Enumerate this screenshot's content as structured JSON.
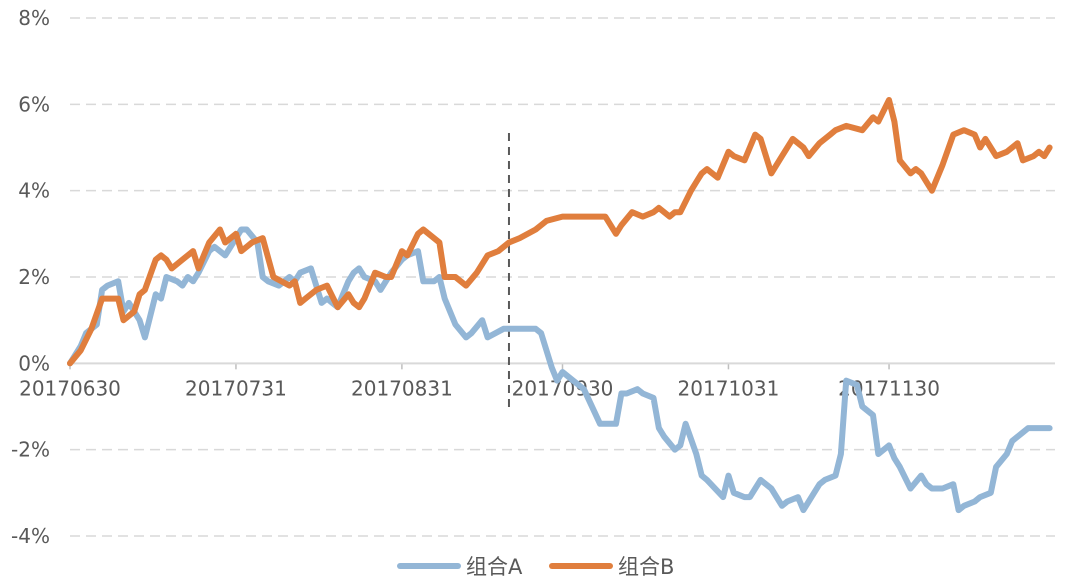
{
  "chart_data": {
    "type": "line",
    "title": "",
    "xlabel": "",
    "ylabel": "",
    "ylim": [
      -0.04,
      0.08
    ],
    "y_ticks": [
      -0.04,
      -0.02,
      0,
      0.02,
      0.04,
      0.06,
      0.08
    ],
    "y_tick_labels": [
      "-4%",
      "-2%",
      "0%",
      "2%",
      "4%",
      "6%",
      "8%"
    ],
    "x_tick_labels": [
      "20170630",
      "20170731",
      "20170831",
      "20170930",
      "20171031",
      "20171130"
    ],
    "x_ticks": [
      "2017-06-30",
      "2017-07-31",
      "2017-08-31",
      "2017-09-30",
      "2017-10-31",
      "2017-11-30"
    ],
    "x_range": [
      "2017-06-30",
      "2017-12-31"
    ],
    "grid": true,
    "grid_style": "dashed horizontal",
    "split_marker": {
      "x": "2017-09-20",
      "style": "dashed vertical"
    },
    "legend_position": "bottom-center",
    "series": [
      {
        "name": "组合A",
        "color": "#93b6d6",
        "x": [
          "2017-06-30",
          "2017-07-02",
          "2017-07-03",
          "2017-07-05",
          "2017-07-06",
          "2017-07-07",
          "2017-07-09",
          "2017-07-10",
          "2017-07-11",
          "2017-07-13",
          "2017-07-14",
          "2017-07-16",
          "2017-07-17",
          "2017-07-18",
          "2017-07-20",
          "2017-07-21",
          "2017-07-22",
          "2017-07-23",
          "2017-07-24",
          "2017-07-26",
          "2017-07-27",
          "2017-07-29",
          "2017-07-31",
          "2017-08-01",
          "2017-08-02",
          "2017-08-04",
          "2017-08-05",
          "2017-08-06",
          "2017-08-08",
          "2017-08-10",
          "2017-08-11",
          "2017-08-12",
          "2017-08-14",
          "2017-08-16",
          "2017-08-17",
          "2017-08-18",
          "2017-08-19",
          "2017-08-21",
          "2017-08-22",
          "2017-08-23",
          "2017-08-24",
          "2017-08-26",
          "2017-08-27",
          "2017-08-29",
          "2017-08-31",
          "2017-09-01",
          "2017-09-03",
          "2017-09-04",
          "2017-09-06",
          "2017-09-07",
          "2017-09-08",
          "2017-09-10",
          "2017-09-12",
          "2017-09-13",
          "2017-09-15",
          "2017-09-16",
          "2017-09-19",
          "2017-09-21",
          "2017-09-22",
          "2017-09-23",
          "2017-09-25",
          "2017-09-26",
          "2017-09-28",
          "2017-09-29",
          "2017-09-30",
          "2017-10-02",
          "2017-10-04",
          "2017-10-07",
          "2017-10-10",
          "2017-10-11",
          "2017-10-12",
          "2017-10-14",
          "2017-10-15",
          "2017-10-17",
          "2017-10-18",
          "2017-10-19",
          "2017-10-21",
          "2017-10-22",
          "2017-10-23",
          "2017-10-25",
          "2017-10-26",
          "2017-10-27",
          "2017-10-30",
          "2017-10-31",
          "2017-11-01",
          "2017-11-03",
          "2017-11-04",
          "2017-11-06",
          "2017-11-07",
          "2017-11-08",
          "2017-11-10",
          "2017-11-11",
          "2017-11-13",
          "2017-11-14",
          "2017-11-16",
          "2017-11-17",
          "2017-11-18",
          "2017-11-20",
          "2017-11-21",
          "2017-11-22",
          "2017-11-24",
          "2017-11-25",
          "2017-11-27",
          "2017-11-28",
          "2017-11-29",
          "2017-11-30",
          "2017-12-01",
          "2017-12-02",
          "2017-12-04",
          "2017-12-06",
          "2017-12-07",
          "2017-12-08",
          "2017-12-10",
          "2017-12-12",
          "2017-12-13",
          "2017-12-14",
          "2017-12-16",
          "2017-12-17",
          "2017-12-19",
          "2017-12-20",
          "2017-12-22",
          "2017-12-23",
          "2017-12-25",
          "2017-12-26",
          "2017-12-27",
          "2017-12-29",
          "2017-12-30"
        ],
        "values": [
          0.0,
          0.004,
          0.007,
          0.009,
          0.017,
          0.018,
          0.019,
          0.012,
          0.014,
          0.01,
          0.006,
          0.016,
          0.015,
          0.02,
          0.019,
          0.018,
          0.02,
          0.019,
          0.021,
          0.026,
          0.027,
          0.025,
          0.029,
          0.031,
          0.031,
          0.028,
          0.02,
          0.019,
          0.018,
          0.02,
          0.019,
          0.021,
          0.022,
          0.014,
          0.015,
          0.014,
          0.013,
          0.019,
          0.021,
          0.022,
          0.02,
          0.019,
          0.017,
          0.021,
          0.024,
          0.025,
          0.026,
          0.019,
          0.019,
          0.02,
          0.015,
          0.009,
          0.006,
          0.007,
          0.01,
          0.006,
          0.008,
          0.008,
          0.008,
          0.008,
          0.008,
          0.007,
          -0.001,
          -0.004,
          -0.002,
          -0.004,
          -0.006,
          -0.014,
          -0.014,
          -0.007,
          -0.007,
          -0.006,
          -0.007,
          -0.008,
          -0.015,
          -0.017,
          -0.02,
          -0.019,
          -0.014,
          -0.021,
          -0.026,
          -0.027,
          -0.031,
          -0.026,
          -0.03,
          -0.031,
          -0.031,
          -0.027,
          -0.028,
          -0.029,
          -0.033,
          -0.032,
          -0.031,
          -0.034,
          -0.03,
          -0.028,
          -0.027,
          -0.026,
          -0.021,
          -0.004,
          -0.005,
          -0.01,
          -0.012,
          -0.021,
          -0.02,
          -0.019,
          -0.022,
          -0.024,
          -0.029,
          -0.026,
          -0.028,
          -0.029,
          -0.029,
          -0.028,
          -0.034,
          -0.033,
          -0.032,
          -0.031,
          -0.03,
          -0.024,
          -0.021,
          -0.018,
          -0.016,
          -0.015,
          -0.015,
          -0.015,
          -0.015
        ]
      },
      {
        "name": "组合B",
        "color": "#e07e3d",
        "x": [
          "2017-06-30",
          "2017-07-02",
          "2017-07-04",
          "2017-07-06",
          "2017-07-07",
          "2017-07-09",
          "2017-07-10",
          "2017-07-11",
          "2017-07-12",
          "2017-07-13",
          "2017-07-14",
          "2017-07-16",
          "2017-07-17",
          "2017-07-18",
          "2017-07-19",
          "2017-07-21",
          "2017-07-23",
          "2017-07-24",
          "2017-07-25",
          "2017-07-26",
          "2017-07-28",
          "2017-07-29",
          "2017-07-31",
          "2017-08-01",
          "2017-08-02",
          "2017-08-03",
          "2017-08-05",
          "2017-08-07",
          "2017-08-10",
          "2017-08-11",
          "2017-08-12",
          "2017-08-13",
          "2017-08-15",
          "2017-08-17",
          "2017-08-19",
          "2017-08-21",
          "2017-08-22",
          "2017-08-23",
          "2017-08-24",
          "2017-08-26",
          "2017-08-28",
          "2017-08-29",
          "2017-08-31",
          "2017-09-01",
          "2017-09-03",
          "2017-09-04",
          "2017-09-06",
          "2017-09-07",
          "2017-09-08",
          "2017-09-10",
          "2017-09-12",
          "2017-09-14",
          "2017-09-16",
          "2017-09-18",
          "2017-09-20",
          "2017-09-22",
          "2017-09-25",
          "2017-09-26",
          "2017-09-27",
          "2017-09-30",
          "2017-10-08",
          "2017-10-10",
          "2017-10-11",
          "2017-10-13",
          "2017-10-15",
          "2017-10-17",
          "2017-10-18",
          "2017-10-20",
          "2017-10-21",
          "2017-10-22",
          "2017-10-24",
          "2017-10-25",
          "2017-10-26",
          "2017-10-27",
          "2017-10-29",
          "2017-10-31",
          "2017-11-01",
          "2017-11-03",
          "2017-11-05",
          "2017-11-06",
          "2017-11-08",
          "2017-11-10",
          "2017-11-12",
          "2017-11-14",
          "2017-11-15",
          "2017-11-17",
          "2017-11-18",
          "2017-11-19",
          "2017-11-20",
          "2017-11-22",
          "2017-11-25",
          "2017-11-27",
          "2017-11-28",
          "2017-11-30",
          "2017-12-01",
          "2017-12-02",
          "2017-12-04",
          "2017-12-05",
          "2017-12-06",
          "2017-12-08",
          "2017-12-10",
          "2017-12-12",
          "2017-12-14",
          "2017-12-16",
          "2017-12-17",
          "2017-12-18",
          "2017-12-20",
          "2017-12-22",
          "2017-12-24",
          "2017-12-25",
          "2017-12-27",
          "2017-12-28",
          "2017-12-29",
          "2017-12-30"
        ],
        "values": [
          0.0,
          0.003,
          0.008,
          0.015,
          0.015,
          0.015,
          0.01,
          0.011,
          0.012,
          0.016,
          0.017,
          0.024,
          0.025,
          0.024,
          0.022,
          0.024,
          0.026,
          0.022,
          0.025,
          0.028,
          0.031,
          0.028,
          0.03,
          0.026,
          0.027,
          0.028,
          0.029,
          0.02,
          0.018,
          0.019,
          0.014,
          0.015,
          0.017,
          0.018,
          0.013,
          0.016,
          0.014,
          0.013,
          0.015,
          0.021,
          0.02,
          0.02,
          0.026,
          0.025,
          0.03,
          0.031,
          0.029,
          0.028,
          0.02,
          0.02,
          0.018,
          0.021,
          0.025,
          0.026,
          0.028,
          0.029,
          0.031,
          0.032,
          0.033,
          0.034,
          0.034,
          0.03,
          0.032,
          0.035,
          0.034,
          0.035,
          0.036,
          0.034,
          0.035,
          0.035,
          0.04,
          0.042,
          0.044,
          0.045,
          0.043,
          0.049,
          0.048,
          0.047,
          0.053,
          0.052,
          0.044,
          0.048,
          0.052,
          0.05,
          0.048,
          0.051,
          0.052,
          0.053,
          0.054,
          0.055,
          0.054,
          0.057,
          0.056,
          0.061,
          0.056,
          0.047,
          0.044,
          0.045,
          0.044,
          0.04,
          0.046,
          0.053,
          0.054,
          0.053,
          0.05,
          0.052,
          0.048,
          0.049,
          0.051,
          0.047,
          0.048,
          0.049,
          0.048,
          0.05
        ]
      }
    ]
  }
}
